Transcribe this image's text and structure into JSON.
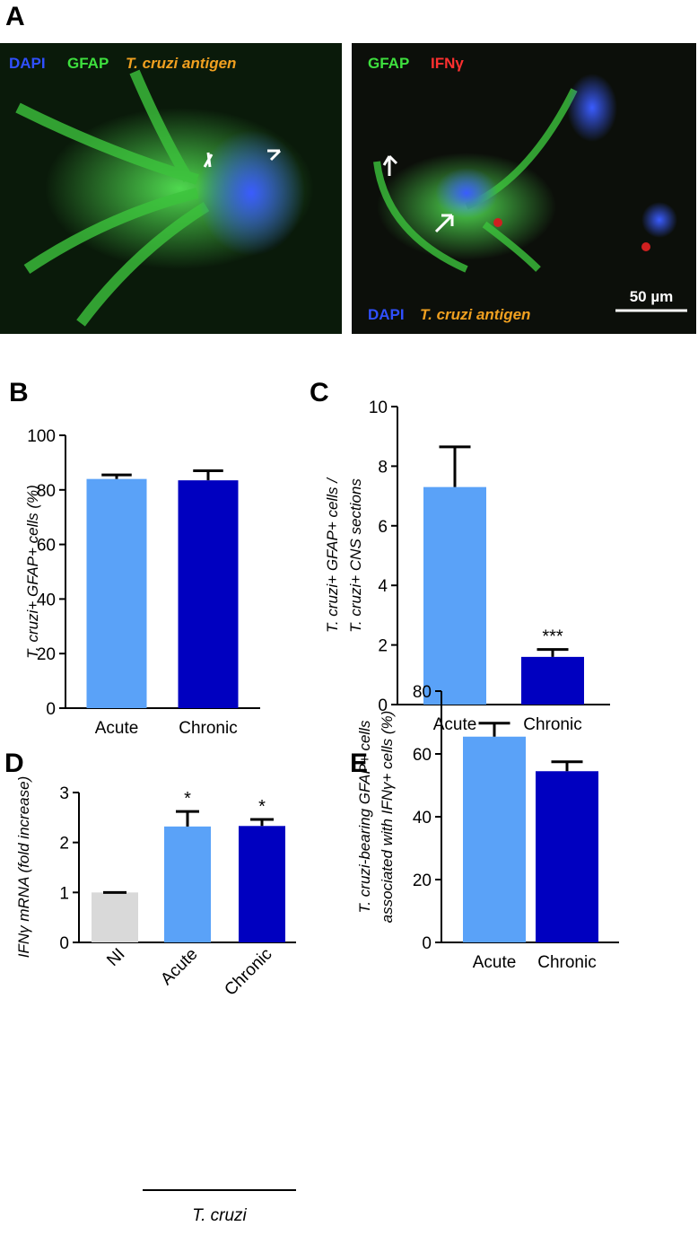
{
  "panel_a": {
    "label": "A",
    "left_image": {
      "labels": [
        "DAPI",
        "GFAP",
        "T. cruzi antigen"
      ]
    },
    "right_image": {
      "top_labels": [
        "GFAP",
        "IFNγ"
      ],
      "bottom_labels": [
        "DAPI",
        "T. cruzi antigen"
      ],
      "scale_bar": "50 µm"
    }
  },
  "chart_data": [
    {
      "type": "bar",
      "panel": "B",
      "ylabel": [
        "T. cruzi+ GFAP+ cells (%)"
      ],
      "categories": [
        "Acute",
        "Chronic"
      ],
      "values": [
        84,
        83.5
      ],
      "errors": [
        1.5,
        3.5
      ],
      "colors": [
        "#5aa2f8",
        "#0000c0"
      ],
      "ylim": [
        0,
        100
      ],
      "yticks": [
        0,
        20,
        40,
        60,
        80,
        100
      ]
    },
    {
      "type": "bar",
      "panel": "C",
      "ylabel": [
        "T. cruzi+ GFAP+ cells /",
        "T. cruzi+ CNS sections"
      ],
      "categories": [
        "Acute",
        "Chronic"
      ],
      "values": [
        7.3,
        1.6
      ],
      "errors": [
        1.35,
        0.25
      ],
      "annotations": [
        null,
        "***"
      ],
      "colors": [
        "#5aa2f8",
        "#0000c0"
      ],
      "ylim": [
        0,
        10
      ],
      "yticks": [
        0,
        2,
        4,
        6,
        8,
        10
      ]
    },
    {
      "type": "bar",
      "panel": "D",
      "ylabel": [
        "IFNγ mRNA (fold increase)"
      ],
      "categories": [
        "NI",
        "Acute",
        "Chronic"
      ],
      "values": [
        1.0,
        2.32,
        2.33
      ],
      "errors": [
        0,
        0.3,
        0.13
      ],
      "annotations": [
        null,
        "*",
        "*"
      ],
      "group_label": "T. cruzi",
      "colors": [
        "#d9d9d9",
        "#5aa2f8",
        "#0000c0"
      ],
      "ylim": [
        0,
        3
      ],
      "yticks": [
        0,
        1,
        2,
        3
      ]
    },
    {
      "type": "bar",
      "panel": "E",
      "ylabel": [
        "T. cruzi-bearing GFAP+ cells",
        "associated with IFNγ+ cells (%)"
      ],
      "categories": [
        "Acute",
        "Chronic"
      ],
      "values": [
        65.5,
        54.5
      ],
      "errors": [
        4.3,
        3
      ],
      "colors": [
        "#5aa2f8",
        "#0000c0"
      ],
      "ylim": [
        0,
        80
      ],
      "yticks": [
        0,
        20,
        40,
        60,
        80
      ]
    }
  ]
}
